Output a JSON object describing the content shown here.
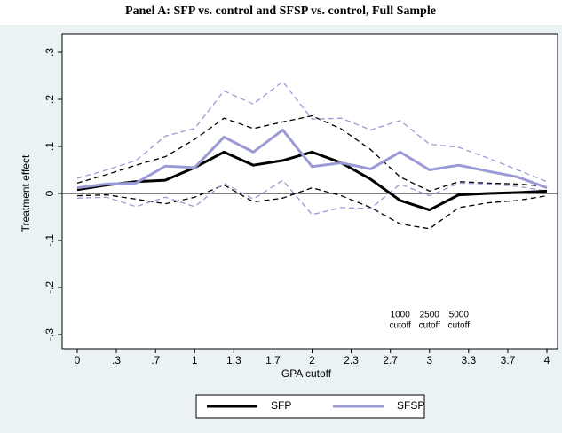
{
  "chart_data": {
    "type": "line",
    "title": "Panel A: SFP vs. control and SFSP vs. control, Full Sample",
    "x_label": "GPA cutoff",
    "y_label": "Treatment effect",
    "x": [
      0,
      0.25,
      0.5,
      0.75,
      1,
      1.25,
      1.5,
      1.75,
      2,
      2.25,
      2.5,
      2.75,
      3,
      3.25,
      3.5,
      3.75,
      4
    ],
    "series": [
      {
        "color": "#000000",
        "dashed": true,
        "width": 1.3,
        "values": [
          0.022,
          0.04,
          0.06,
          0.078,
          0.115,
          0.16,
          0.138,
          0.152,
          0.165,
          0.137,
          0.093,
          0.035,
          0.005,
          0.025,
          0.022,
          0.02,
          0.015
        ]
      },
      {
        "color": "#000000",
        "dashed": true,
        "width": 1.3,
        "values": [
          -0.005,
          -0.003,
          -0.012,
          -0.022,
          -0.008,
          0.018,
          -0.018,
          -0.01,
          0.012,
          -0.005,
          -0.03,
          -0.065,
          -0.075,
          -0.03,
          -0.02,
          -0.015,
          -0.005
        ]
      },
      {
        "color": "#9a9ad6",
        "dashed": true,
        "width": 1.3,
        "values": [
          0.032,
          0.05,
          0.07,
          0.122,
          0.138,
          0.218,
          0.19,
          0.238,
          0.158,
          0.16,
          0.135,
          0.155,
          0.105,
          0.098,
          0.075,
          0.05,
          0.025
        ]
      },
      {
        "color": "#9a9ad6",
        "dashed": true,
        "width": 1.3,
        "values": [
          -0.01,
          -0.008,
          -0.028,
          -0.008,
          -0.028,
          0.022,
          -0.012,
          0.028,
          -0.045,
          -0.03,
          -0.032,
          0.02,
          -0.005,
          0.022,
          0.02,
          0.015,
          0.005
        ]
      },
      {
        "name": "SFP",
        "color": "#000000",
        "dashed": false,
        "width": 3,
        "values": [
          0.008,
          0.018,
          0.025,
          0.028,
          0.055,
          0.088,
          0.06,
          0.07,
          0.088,
          0.065,
          0.03,
          -0.015,
          -0.035,
          -0.003,
          0,
          0.002,
          0.005
        ]
      },
      {
        "name": "SFSP",
        "color": "#9a9ad6",
        "dashed": false,
        "width": 3,
        "values": [
          0.012,
          0.02,
          0.022,
          0.058,
          0.055,
          0.12,
          0.088,
          0.135,
          0.057,
          0.065,
          0.052,
          0.088,
          0.05,
          0.06,
          0.047,
          0.035,
          0.012
        ]
      }
    ],
    "xlim": [
      0,
      4
    ],
    "ylim": [
      -0.3,
      0.3
    ],
    "xticks": [
      0,
      {
        "value": 0.333,
        "label": ".3"
      },
      {
        "value": 0.667,
        "label": ".7"
      },
      1,
      {
        "value": 1.333,
        "label": "1.3"
      },
      {
        "value": 1.667,
        "label": "1.7"
      },
      2,
      {
        "value": 2.333,
        "label": "2.3"
      },
      {
        "value": 2.667,
        "label": "2.7"
      },
      3,
      {
        "value": 3.333,
        "label": "3.3"
      },
      {
        "value": 3.667,
        "label": "3.7"
      },
      4
    ],
    "yticks": [
      {
        "value": -0.3,
        "label": "-.3"
      },
      {
        "value": -0.2,
        "label": "-.2"
      },
      {
        "value": -0.1,
        "label": "-.1"
      },
      0,
      {
        "value": 0.1,
        "label": ".1"
      },
      {
        "value": 0.2,
        "label": ".2"
      },
      {
        "value": 0.3,
        "label": ".3"
      }
    ],
    "reference_line": 0,
    "legend": "bottom",
    "annotations": [
      {
        "x": 2.75,
        "y": -0.27,
        "lines": [
          "1000",
          "cutoff"
        ]
      },
      {
        "x": 3,
        "y": -0.27,
        "lines": [
          "2500",
          "cutoff"
        ]
      },
      {
        "x": 3.25,
        "y": -0.27,
        "lines": [
          "5000",
          "cutoff"
        ]
      }
    ]
  }
}
